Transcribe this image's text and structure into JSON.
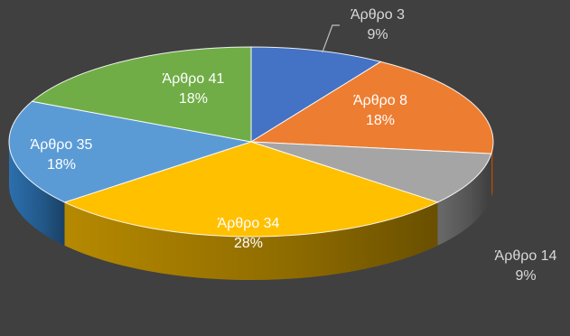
{
  "chart_data": {
    "type": "pie",
    "style": "3d",
    "legend": "none",
    "slices": [
      {
        "label": "Άρθρο 3",
        "percent_label": "9%",
        "value": 9,
        "color": "#4472c4",
        "side_color": "#2f5597",
        "label_color": "#ffffff"
      },
      {
        "label": "Άρθρο 8",
        "percent_label": "18%",
        "value": 18,
        "color": "#ed7d31",
        "side_color": "#b85f22",
        "label_color": "#ffffff"
      },
      {
        "label": "Άρθρο 14",
        "percent_label": "9%",
        "value": 9,
        "color": "#a5a5a5",
        "side_color": "#6f6f6f",
        "label_color": "#ffffff"
      },
      {
        "label": "Άρθρο 34",
        "percent_label": "28%",
        "value": 28,
        "color": "#ffc000",
        "side_color": "#bf9000",
        "label_color": "#ffffff"
      },
      {
        "label": "Άρθρο 35",
        "percent_label": "18%",
        "value": 18,
        "color": "#5b9bd5",
        "side_color": "#2e75b6",
        "label_color": "#ffffff"
      },
      {
        "label": "Άρθρο 41",
        "percent_label": "18%",
        "value": 18,
        "color": "#70ad47",
        "side_color": "#4e7a30",
        "label_color": "#ffffff"
      }
    ]
  }
}
